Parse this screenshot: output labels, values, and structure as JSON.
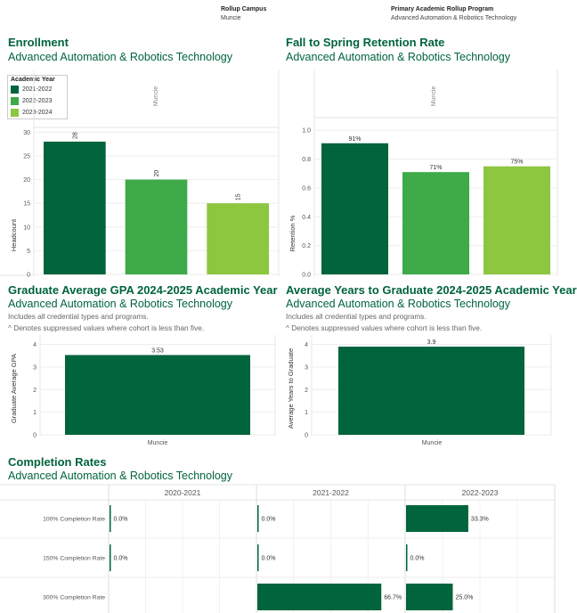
{
  "filters": {
    "campus": {
      "label": "Rollup Campus",
      "value": "Muncie"
    },
    "program": {
      "label": "Primary Academic Rollup Program",
      "value": "Advanced Automation & Robotics Technology"
    }
  },
  "colors": {
    "c2021": "#00643C",
    "c2022": "#3EAA48",
    "c2023": "#8DC63F",
    "dark": "#00643C"
  },
  "enrollment": {
    "title": "Enrollment",
    "subtitle": "Advanced Automation & Robotics Technology",
    "legend": {
      "title": "Academic Year",
      "items": [
        "2021-2022",
        "2022-2023",
        "2023-2024"
      ]
    },
    "col_header": "Muncie"
  },
  "retention": {
    "title": "Fall to Spring Retention Rate",
    "subtitle": "Advanced Automation & Robotics Technology",
    "col_header": "Muncie"
  },
  "gpa": {
    "title": "Graduate Average GPA 2024-2025 Academic Year",
    "subtitle": "Advanced Automation & Robotics Technology",
    "note1": "Includes all credential types and programs.",
    "note2": "^ Denotes suppressed values where cohort is less than five."
  },
  "years": {
    "title": "Average Years to Graduate 2024-2025 Academic Year",
    "subtitle": "Advanced Automation & Robotics Technology",
    "note1": "Includes all credential types and programs.",
    "note2": "^ Denotes suppressed values where cohort is less than five."
  },
  "completion": {
    "title": "Completion Rates",
    "subtitle": "Advanced Automation & Robotics Technology"
  },
  "chart_data": [
    {
      "id": "enrollment",
      "type": "bar",
      "categories": [
        "2021-2022",
        "2022-2023",
        "2023-2024"
      ],
      "values": [
        28,
        20,
        15
      ],
      "value_labels": [
        "28",
        "20",
        "15"
      ],
      "ylabel": "Headcount",
      "ylim": [
        0,
        31
      ],
      "yticks": [
        "0",
        "5",
        "10",
        "15",
        "20",
        "25",
        "30"
      ],
      "grid": true
    },
    {
      "id": "retention",
      "type": "bar",
      "categories": [
        "2021-2022",
        "2022-2023",
        "2023-2024"
      ],
      "values": [
        0.91,
        0.71,
        0.75
      ],
      "value_labels": [
        "91%",
        "71%",
        "75%"
      ],
      "ylabel": "Retention %",
      "ylim": [
        0,
        1.02
      ],
      "yticks": [
        "0.0",
        "0.2",
        "0.4",
        "0.6",
        "0.8",
        "1.0"
      ],
      "grid": true
    },
    {
      "id": "gpa",
      "type": "bar",
      "categories": [
        "Muncie"
      ],
      "values": [
        3.53
      ],
      "value_labels": [
        "3.53"
      ],
      "ylabel": "Graduate Average GPA",
      "ylim": [
        0,
        4.1
      ],
      "yticks": [
        "0",
        "1",
        "2",
        "3",
        "4"
      ],
      "grid": true
    },
    {
      "id": "years",
      "type": "bar",
      "categories": [
        "Muncie"
      ],
      "values": [
        3.9
      ],
      "value_labels": [
        "3.9"
      ],
      "ylabel": "Average Years to Graduate",
      "ylim": [
        0,
        4.1
      ],
      "yticks": [
        "0",
        "1",
        "2",
        "3",
        "4"
      ],
      "grid": true
    },
    {
      "id": "completion",
      "type": "bar",
      "orientation": "horizontal",
      "columns": [
        "2020-2021",
        "2021-2022",
        "2022-2023"
      ],
      "categories": [
        "100% Completion Rate",
        "150% Completion Rate",
        "300% Completion Rate"
      ],
      "values": [
        [
          0.0,
          0.0,
          0.333
        ],
        [
          0.0,
          0.0,
          0.0
        ],
        [
          null,
          0.667,
          0.25
        ]
      ],
      "value_labels": [
        [
          "0.0%",
          "0.0%",
          "33.3%"
        ],
        [
          "0.0%",
          "0.0%",
          "0.0%"
        ],
        [
          "",
          "66.7%",
          "25.0%"
        ]
      ],
      "xlim": [
        0,
        0.8
      ]
    }
  ]
}
